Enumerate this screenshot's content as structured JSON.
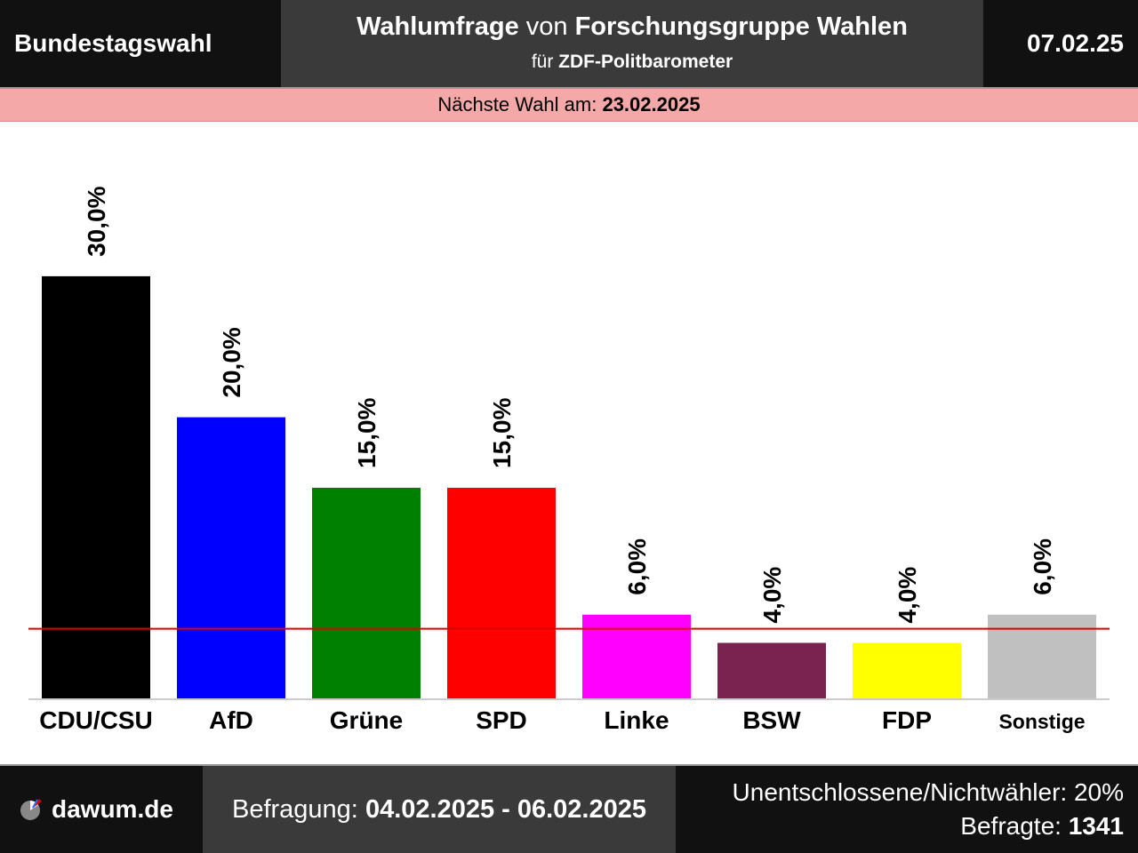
{
  "header": {
    "left": "Bundestagswahl",
    "title_bold_1": "Wahlumfrage",
    "title_mid": " von ",
    "title_bold_2": "Forschungsgruppe Wahlen",
    "sub_prefix": "für ",
    "sub_bold": "ZDF-Politbarometer",
    "date": "07.02.25"
  },
  "next_election": {
    "label": "Nächste Wahl am: ",
    "date": "23.02.2025"
  },
  "footer": {
    "brand": "dawum.de",
    "survey_label": "Befragung: ",
    "survey_period": "04.02.2025 - 06.02.2025",
    "undecided": "Unentschlossene/Nichtwähler: 20%",
    "respondents_label": "Befragte: ",
    "respondents": "1341"
  },
  "colors": {
    "threshold_line": "#e00000",
    "header_dark": "#111111",
    "header_mid": "#3a3a3a",
    "next_bar": "#f4a9a8"
  },
  "chart_data": {
    "type": "bar",
    "categories": [
      "CDU/CSU",
      "AfD",
      "Grüne",
      "SPD",
      "Linke",
      "BSW",
      "FDP",
      "Sonstige"
    ],
    "values": [
      30.0,
      20.0,
      15.0,
      15.0,
      6.0,
      4.0,
      4.0,
      6.0
    ],
    "value_labels": [
      "30,0%",
      "20,0%",
      "15,0%",
      "15,0%",
      "6,0%",
      "4,0%",
      "4,0%",
      "6,0%"
    ],
    "colors": [
      "#000000",
      "#0000ff",
      "#008000",
      "#ff0000",
      "#ff00ff",
      "#7a2350",
      "#ffff00",
      "#c0c0c0"
    ],
    "threshold": 5.0,
    "ylim": [
      0,
      30
    ],
    "xlabel": "",
    "ylabel": "",
    "grid": false
  }
}
